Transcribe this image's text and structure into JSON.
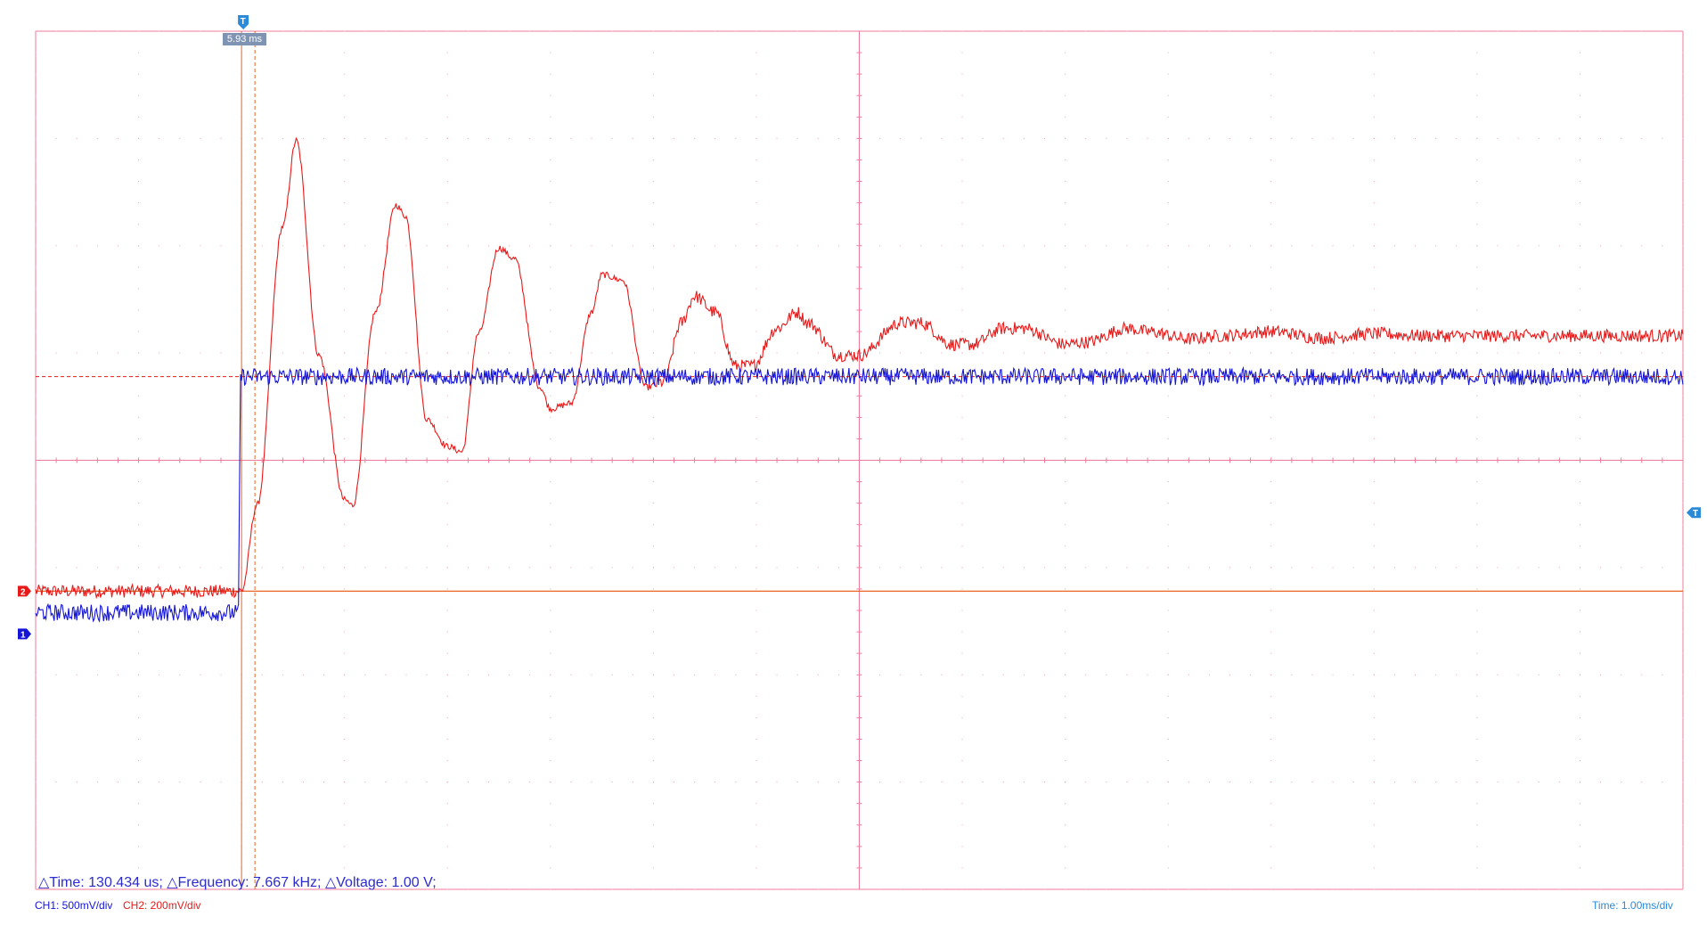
{
  "instrument": {
    "ch1_scale_label": "CH1: 500mV/div",
    "ch2_scale_label": "CH2: 200mV/div",
    "time_scale_label": "Time: 1.00ms/div",
    "measurement_text": "△Time: 130.434 us; △Frequency: 7.667 kHz; △Voltage: 1.00 V;",
    "cursor_readout": "5.93 ms",
    "ch1_marker": "1",
    "ch2_marker": "2",
    "trigger_marker": "T",
    "colors": {
      "ch1": "#1515d8",
      "ch2": "#e81919",
      "grid": "#f07a9a",
      "cursor": "#e86420",
      "trigger": "#2a8ad8"
    }
  },
  "chart_data": {
    "type": "line",
    "title": "",
    "xlabel": "",
    "ylabel": "",
    "x_range_ms": [
      0,
      16
    ],
    "grid": true,
    "series": [
      {
        "name": "CH1",
        "x": [
          0,
          1.97,
          1.99,
          16
        ],
        "y_div": [
          -0.2,
          -0.2,
          2.0,
          2.0
        ],
        "noise_div": 0.08
      },
      {
        "name": "CH2",
        "x": [
          0.0,
          2.0,
          2.15,
          2.4,
          2.53,
          2.75,
          3.0,
          3.08,
          3.3,
          3.5,
          3.59,
          3.8,
          4.0,
          4.14,
          4.3,
          4.5,
          4.65,
          4.9,
          5.0,
          5.2,
          5.4,
          5.5,
          5.7,
          5.93,
          6.1,
          6.27,
          6.4,
          6.6,
          6.8,
          6.96,
          7.2,
          7.4,
          7.5,
          7.8,
          8.0,
          8.4,
          8.6,
          8.9,
          9.1,
          9.4,
          9.6,
          10.0,
          10.2,
          10.6,
          10.8,
          11.2,
          11.5,
          12.0,
          12.5,
          13.0,
          13.5,
          14.0,
          15.0,
          16.0
        ],
        "y_div": [
          0.0,
          0.0,
          0.8,
          3.4,
          4.2,
          2.2,
          0.85,
          0.8,
          2.6,
          3.6,
          3.5,
          1.6,
          1.35,
          1.3,
          2.4,
          3.2,
          3.1,
          1.9,
          1.7,
          1.75,
          2.6,
          2.95,
          2.9,
          1.9,
          1.95,
          2.5,
          2.75,
          2.6,
          2.1,
          2.1,
          2.45,
          2.6,
          2.5,
          2.2,
          2.2,
          2.5,
          2.5,
          2.3,
          2.3,
          2.45,
          2.45,
          2.3,
          2.32,
          2.45,
          2.42,
          2.35,
          2.38,
          2.42,
          2.36,
          2.4,
          2.38,
          2.38,
          2.38,
          2.38
        ],
        "noise_div": 0.05
      }
    ],
    "cursors": {
      "vertical_ms": [
        2.0,
        2.13
      ],
      "horizontal_div": [
        2.0
      ]
    }
  }
}
